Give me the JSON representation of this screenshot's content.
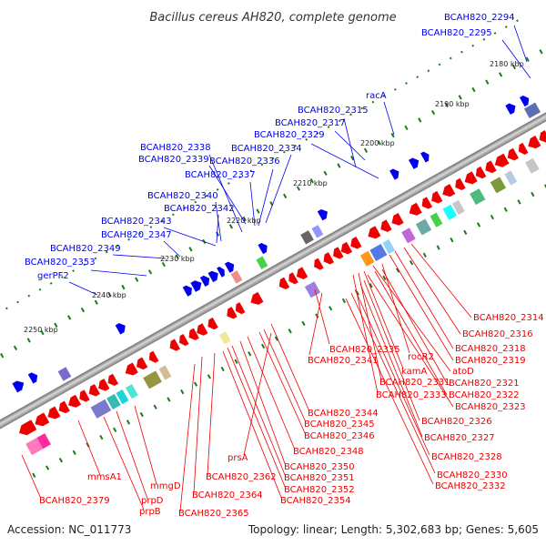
{
  "title": "Bacillus cereus AH820, complete genome",
  "footer": {
    "accession": "Accession: NC_011773",
    "summary": "Topology: linear; Length: 5,302,683 bp; Genes: 5,605"
  },
  "colors": {
    "forward_gene": "#0000ee",
    "reverse_gene": "#ee0000",
    "backbone": "#8c8c8c",
    "tick": "#1a7a1a"
  },
  "ruler": [
    "2180 kbp",
    "2190 kbp",
    "2200 kbp",
    "2210 kbp",
    "2220 kbp",
    "2230 kbp",
    "2240 kbp",
    "2250 kbp"
  ],
  "labels_forward": [
    "BCAH820_2294",
    "BCAH820_2295",
    "racA",
    "BCAH820_2315",
    "BCAH820_2317",
    "BCAH820_2329",
    "BCAH820_2338",
    "BCAH820_2334",
    "BCAH820_2339",
    "BCAH820_2336",
    "BCAH820_2337",
    "BCAH820_2340",
    "BCAH820_2342",
    "BCAH820_2343",
    "BCAH820_2347",
    "BCAH820_2349",
    "BCAH820_2353",
    "gerPF2"
  ],
  "labels_reverse": [
    "BCAH820_2314",
    "BCAH820_2316",
    "BCAH820_2318",
    "BCAH820_2319",
    "BCAH820_2335",
    "rocR2",
    "BCAH820_2341",
    "atoD",
    "kamA",
    "BCAH820_2321",
    "BCAH820_2331",
    "BCAH820_2322",
    "BCAH820_2333",
    "BCAH820_2323",
    "BCAH820_2344",
    "BCAH820_2326",
    "BCAH820_2345",
    "BCAH820_2346",
    "BCAH820_2327",
    "prsA",
    "BCAH820_2348",
    "BCAH820_2328",
    "BCAH820_2350",
    "mmsA1",
    "BCAH820_2362",
    "BCAH820_2351",
    "BCAH820_2330",
    "BCAH820_2352",
    "BCAH820_2332",
    "mmgD",
    "BCAH820_2364",
    "BCAH820_2354",
    "prpD",
    "BCAH820_2379",
    "prpB",
    "BCAH820_2365"
  ]
}
